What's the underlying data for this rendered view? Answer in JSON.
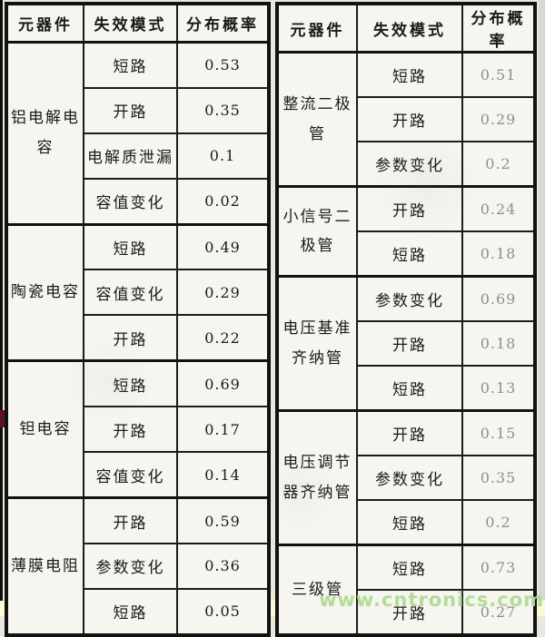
{
  "page": {
    "watermark": "www.cntronics.com"
  },
  "tables": [
    {
      "headers": [
        "元器件",
        "失效模式",
        "分布概率"
      ],
      "groups": [
        {
          "component": "铝电解电容",
          "rows": [
            {
              "mode": "短路",
              "prob": "0.53"
            },
            {
              "mode": "开路",
              "prob": "0.35"
            },
            {
              "mode": "电解质泄漏",
              "prob": "0.1"
            },
            {
              "mode": "容值变化",
              "prob": "0.02"
            }
          ]
        },
        {
          "component": "陶瓷电容",
          "rows": [
            {
              "mode": "短路",
              "prob": "0.49"
            },
            {
              "mode": "容值变化",
              "prob": "0.29"
            },
            {
              "mode": "开路",
              "prob": "0.22"
            }
          ]
        },
        {
          "component": "钽电容",
          "rows": [
            {
              "mode": "短路",
              "prob": "0.69"
            },
            {
              "mode": "开路",
              "prob": "0.17"
            },
            {
              "mode": "容值变化",
              "prob": "0.14"
            }
          ]
        },
        {
          "component": "薄膜电阻",
          "rows": [
            {
              "mode": "开路",
              "prob": "0.59"
            },
            {
              "mode": "参数变化",
              "prob": "0.36"
            },
            {
              "mode": "短路",
              "prob": "0.05"
            }
          ]
        }
      ]
    },
    {
      "headers": [
        "元器件",
        "失效模式",
        "分布概率"
      ],
      "groups": [
        {
          "component": "整流二极管",
          "rows": [
            {
              "mode": "短路",
              "prob": "0.51"
            },
            {
              "mode": "开路",
              "prob": "0.29"
            },
            {
              "mode": "参数变化",
              "prob": "0.2"
            }
          ]
        },
        {
          "component": "小信号二极管",
          "rows": [
            {
              "mode": "开路",
              "prob": "0.24"
            },
            {
              "mode": "短路",
              "prob": "0.18"
            }
          ]
        },
        {
          "component": "电压基准\n齐纳管",
          "rows": [
            {
              "mode": "参数变化",
              "prob": "0.69"
            },
            {
              "mode": "开路",
              "prob": "0.18"
            },
            {
              "mode": "短路",
              "prob": "0.13"
            }
          ]
        },
        {
          "component": "电压调节\n器齐纳管",
          "rows": [
            {
              "mode": "开路",
              "prob": "0.15"
            },
            {
              "mode": "参数变化",
              "prob": "0.35"
            },
            {
              "mode": "短路",
              "prob": "0.2"
            }
          ]
        },
        {
          "component": "三级管",
          "rows": [
            {
              "mode": "短路",
              "prob": "0.73"
            },
            {
              "mode": "开路",
              "prob": "0.27"
            }
          ]
        }
      ]
    }
  ]
}
